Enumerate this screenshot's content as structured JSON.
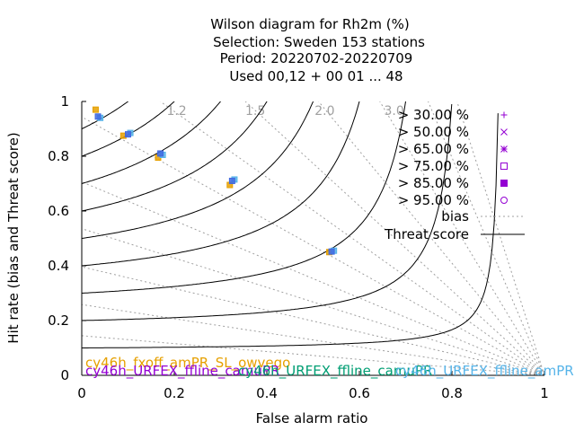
{
  "title_lines": [
    "Wilson diagram  for Rh2m (%)",
    "Selection: Sweden    153 stations",
    "Period: 20220702-20220709",
    "Used  00,12  + 00 01 ... 48"
  ],
  "chart_data": {
    "type": "scatter",
    "xlabel": "False alarm ratio",
    "ylabel": "Hit rate (bias and Threat score)",
    "xlim": [
      0,
      1
    ],
    "ylim": [
      0,
      1
    ],
    "xticks": [
      "0",
      "0.2",
      "0.4",
      "0.6",
      "0.8",
      "1"
    ],
    "yticks": [
      "0",
      "0.2",
      "0.4",
      "0.6",
      "0.8",
      "1"
    ],
    "bias_values": [
      1.2,
      1.5,
      2.0,
      3.0
    ],
    "bias_labels": [
      "1.2",
      "1.5",
      "2.0",
      "3.0"
    ],
    "bias_lines_tan_deg": [
      4.9,
      8.7,
      13.2,
      17.6,
      22.7,
      29.2,
      35.5,
      42.5,
      50.5,
      59.0,
      67.0,
      72.3
    ],
    "threat_score_levels": [
      0.1,
      0.2,
      0.3,
      0.4,
      0.5,
      0.6,
      0.7,
      0.8,
      0.9
    ],
    "legend": {
      "thresholds": [
        {
          "label": "> 30.00 %",
          "marker": "plus"
        },
        {
          "label": "> 50.00 %",
          "marker": "cross"
        },
        {
          "label": "> 65.00 %",
          "marker": "star"
        },
        {
          "label": "> 75.00 %",
          "marker": "square-open"
        },
        {
          "label": "> 85.00 %",
          "marker": "square-filled"
        },
        {
          "label": "> 95.00 %",
          "marker": "circle-open"
        }
      ],
      "bias_label": "bias",
      "ts_label": "Threat score",
      "marker_color": "#9400d3"
    },
    "series": [
      {
        "name": "cy46h_fxoff_amPR_SL_owvego",
        "color": "#e6a000",
        "points": [
          [
            0.03,
            0.97
          ],
          [
            0.09,
            0.875
          ],
          [
            0.165,
            0.795
          ],
          [
            0.32,
            0.695
          ],
          [
            0.535,
            0.45
          ]
        ]
      },
      {
        "name": "cy46h_URFEX_ffline_camuPR",
        "color": "#56b4e9",
        "points": [
          [
            0.04,
            0.94
          ],
          [
            0.105,
            0.885
          ],
          [
            0.175,
            0.805
          ],
          [
            0.33,
            0.715
          ],
          [
            0.545,
            0.455
          ]
        ]
      },
      {
        "name": "cy46h_URFEX_ffline_camuPR_v2",
        "color": "#4169e1",
        "points": [
          [
            0.035,
            0.945
          ],
          [
            0.1,
            0.88
          ],
          [
            0.17,
            0.81
          ],
          [
            0.325,
            0.71
          ],
          [
            0.54,
            0.452
          ]
        ]
      }
    ],
    "bottom_labels": [
      {
        "text": "cy46h_fxoff_amPR_SL_owvego",
        "color": "#e6a000"
      },
      {
        "text": "cy46h_URFEX_ffline_camuPR",
        "color": "#9400d3"
      },
      {
        "text": "cy46h_URFEX_ffline_camuPR",
        "color": "#009e73"
      },
      {
        "text": "cy46h_URFEX_ffline_amPR",
        "color": "#56b4e9"
      }
    ]
  },
  "colors": {
    "axis": "#000000",
    "bias_line": "#a0a0a0",
    "ts_line": "#000000"
  }
}
